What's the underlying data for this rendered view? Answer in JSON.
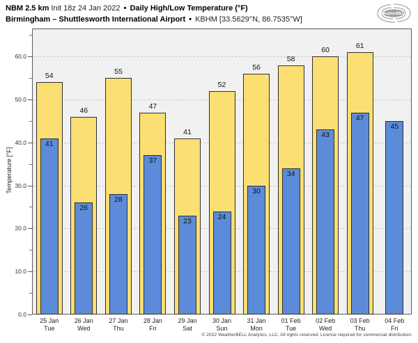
{
  "header": {
    "line1": {
      "model": "NBM 2.5 km",
      "init": "Init 18z 24 Jan 2022",
      "separator": "•",
      "product": "Daily High/Low Temperature (°F)"
    },
    "line2": {
      "location": "Birmingham – Shuttlesworth International Airport",
      "separator": "•",
      "station": "KBHM [33.5629°N, 86.7535°W]"
    }
  },
  "logo": {
    "text": "WeatherBELL"
  },
  "chart_data": {
    "type": "bar",
    "title": "NBM 2.5 km Daily High/Low Temperature (°F) — Birmingham KBHM",
    "xlabel": "",
    "ylabel": "Temperature [°F]",
    "ylim": [
      0,
      66.5
    ],
    "grid": "horizontal dashed at 10°F intervals",
    "legend_position": "none",
    "y_major_ticks": [
      0,
      10,
      20,
      30,
      40,
      50,
      60
    ],
    "y_tick_labels": [
      "0.0",
      "10.0",
      "20.0",
      "30.0",
      "40.0",
      "50.0",
      "60.0"
    ],
    "y_minor_ticks": [
      5,
      15,
      25,
      35,
      45,
      55,
      65
    ],
    "categories": [
      {
        "date": "25 Jan",
        "day": "Tue"
      },
      {
        "date": "26 Jan",
        "day": "Wed"
      },
      {
        "date": "27 Jan",
        "day": "Thu"
      },
      {
        "date": "28 Jan",
        "day": "Fri"
      },
      {
        "date": "29 Jan",
        "day": "Sat"
      },
      {
        "date": "30 Jan",
        "day": "Sun"
      },
      {
        "date": "31 Jan",
        "day": "Mon"
      },
      {
        "date": "01 Feb",
        "day": "Tue"
      },
      {
        "date": "02 Feb",
        "day": "Wed"
      },
      {
        "date": "03 Feb",
        "day": "Thu"
      },
      {
        "date": "04 Feb",
        "day": "Fri"
      }
    ],
    "series": [
      {
        "name": "Daily High",
        "color": "#fbdf73",
        "values": [
          54,
          46,
          55,
          47,
          41,
          52,
          56,
          58,
          60,
          61,
          null
        ]
      },
      {
        "name": "Daily Low",
        "color": "#5c8cd9",
        "values": [
          41,
          26,
          28,
          37,
          23,
          24,
          30,
          34,
          43,
          47,
          45
        ]
      }
    ]
  },
  "colors": {
    "high_bar": "#fbdf73",
    "low_bar": "#5c8cd9",
    "bar_border": "#2e2e2e",
    "plot_background": "#f1f1f1",
    "gridline": "#cbcbcb",
    "page_background": "#ffffff"
  },
  "footer": {
    "copyright": "© 2022 WeatherBELL Analytics, LLC. All rights reserved. License required for commercial distribution."
  }
}
